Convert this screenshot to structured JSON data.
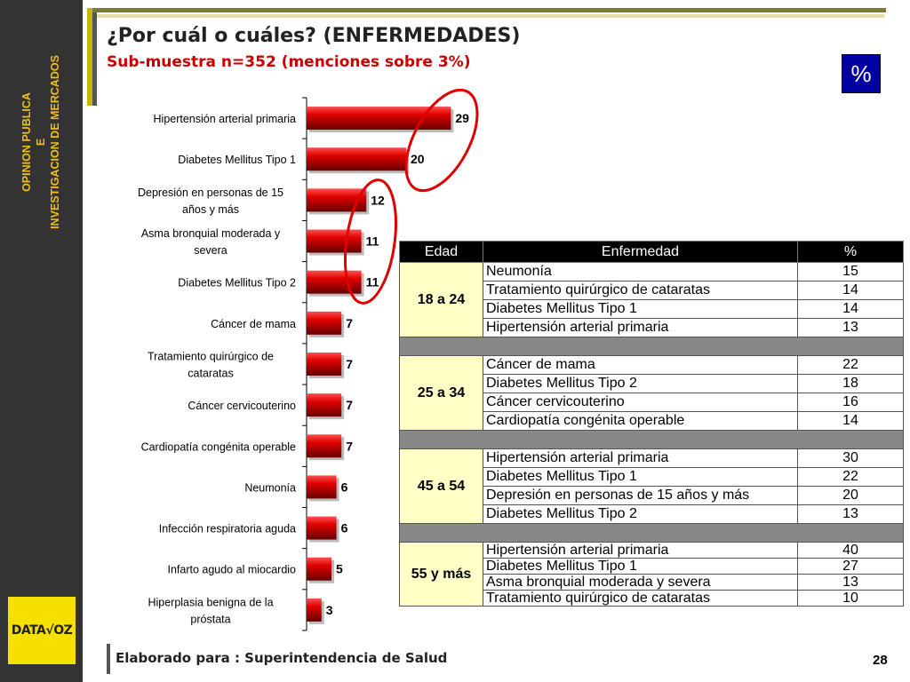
{
  "sidebar": {
    "line1": "OPINION PUBLICA",
    "line2": "E",
    "line3": "INVESTIGACION DE MERCADOS",
    "logo_text": "DATA√OZ"
  },
  "header": {
    "title": "¿Por cuál o cuáles? (ENFERMEDADES)",
    "subtitle": "Sub-muestra n=352 (menciones sobre 3%)",
    "unit_badge": "%"
  },
  "colors": {
    "bar_main": "#cc0000",
    "bar_dark": "#660000",
    "bar_light": "#ff5050",
    "circle": "#e00000",
    "header_bg": "#000000",
    "age_bg": "#ffffc6",
    "sidebar_bg": "#333333",
    "sidebar_text": "#f0c010"
  },
  "chart_data": {
    "type": "bar",
    "orientation": "horizontal",
    "categories": [
      "Hipertensión arterial primaria",
      "Diabetes Mellitus Tipo 1",
      "Depresión en personas de 15 años y más",
      "Asma bronquial moderada y severa",
      "Diabetes Mellitus Tipo 2",
      "Cáncer de mama",
      "Tratamiento quirúrgico de cataratas",
      "Cáncer cervicouterino",
      "Cardiopatía congénita operable",
      "Neumonía",
      "Infección respiratoria aguda",
      "Infarto agudo al miocardio",
      "Hiperplasia benigna de la próstata"
    ],
    "values": [
      29,
      20,
      12,
      11,
      11,
      7,
      7,
      7,
      7,
      6,
      6,
      5,
      3
    ],
    "xlim": [
      0,
      30
    ],
    "data_labels": true
  },
  "table": {
    "headers": [
      "Edad",
      "Enfermedad",
      "%"
    ],
    "groups": [
      {
        "age": "18 a 24",
        "rows": [
          {
            "disease": "Neumonía",
            "pct": "15"
          },
          {
            "disease": "Tratamiento quirúrgico de cataratas",
            "pct": "14"
          },
          {
            "disease": "Diabetes Mellitus Tipo 1",
            "pct": "14"
          },
          {
            "disease": "Hipertensión arterial primaria",
            "pct": "13"
          }
        ]
      },
      {
        "age": "25 a 34",
        "rows": [
          {
            "disease": "Cáncer de mama",
            "pct": "22"
          },
          {
            "disease": "Diabetes Mellitus Tipo 2",
            "pct": "18"
          },
          {
            "disease": "Cáncer cervicouterino",
            "pct": "16"
          },
          {
            "disease": "Cardiopatía congénita operable",
            "pct": "14"
          }
        ]
      },
      {
        "age": "45 a 54",
        "rows": [
          {
            "disease": "Hipertensión arterial primaria",
            "pct": "30"
          },
          {
            "disease": "Diabetes Mellitus Tipo 1",
            "pct": "22"
          },
          {
            "disease": "Depresión en personas de 15 años y más",
            "pct": "20"
          },
          {
            "disease": "Diabetes Mellitus Tipo 2",
            "pct": "13"
          }
        ]
      },
      {
        "age": "55 y más",
        "rows": [
          {
            "disease": "Hipertensión arterial primaria",
            "pct": "40"
          },
          {
            "disease": "Diabetes Mellitus Tipo 1",
            "pct": "27"
          },
          {
            "disease": "Asma bronquial moderada y severa",
            "pct": "13"
          },
          {
            "disease": "Tratamiento quirúrgico de cataratas",
            "pct": "10"
          }
        ]
      }
    ]
  },
  "footer": {
    "text": "Elaborado para : Superintendencia de Salud",
    "page": "28"
  }
}
